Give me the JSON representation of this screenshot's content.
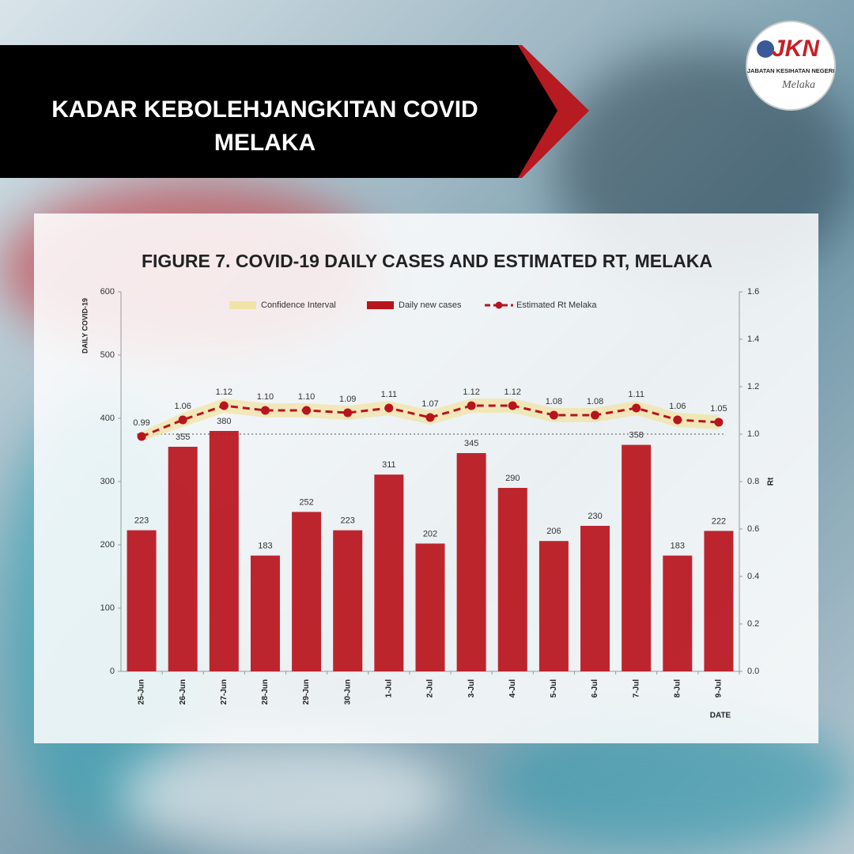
{
  "banner": {
    "title": "KADAR KEBOLEHJANGKITAN COVID MELAKA"
  },
  "logo": {
    "mark": "JKN",
    "org": "JABATAN KESIHATAN NEGERI",
    "state": "Melaka"
  },
  "chart_data": {
    "type": "bar",
    "title": "FIGURE 7. COVID-19 DAILY CASES AND ESTIMATED RT, MELAKA",
    "y_label": "DAILY COVID-19",
    "y2_label": "Rt",
    "x_label": "DATE",
    "categories": [
      "25-Jun",
      "26-Jun",
      "27-Jun",
      "28-Jun",
      "29-Jun",
      "30-Jun",
      "1-Jul",
      "2-Jul",
      "3-Jul",
      "4-Jul",
      "5-Jul",
      "6-Jul",
      "7-Jul",
      "8-Jul",
      "9-Jul"
    ],
    "series": [
      {
        "name": "Confidence Interval",
        "type": "band",
        "axis": "y2",
        "color": "#f1e3a6",
        "lower": [
          0.97,
          1.03,
          1.09,
          1.07,
          1.07,
          1.06,
          1.08,
          1.04,
          1.09,
          1.09,
          1.05,
          1.05,
          1.08,
          1.03,
          1.02
        ],
        "upper": [
          1.01,
          1.09,
          1.15,
          1.13,
          1.13,
          1.12,
          1.14,
          1.1,
          1.15,
          1.15,
          1.11,
          1.11,
          1.14,
          1.09,
          1.08
        ]
      },
      {
        "name": "Daily new cases",
        "type": "bar",
        "axis": "y",
        "color": "#b8141c",
        "values": [
          223,
          355,
          380,
          183,
          252,
          223,
          311,
          202,
          345,
          290,
          206,
          230,
          358,
          183,
          222
        ]
      },
      {
        "name": "Estimated Rt Melaka",
        "type": "line",
        "axis": "y2",
        "color": "#b8141c",
        "values": [
          0.99,
          1.06,
          1.12,
          1.1,
          1.1,
          1.09,
          1.11,
          1.07,
          1.12,
          1.12,
          1.08,
          1.08,
          1.11,
          1.06,
          1.05
        ],
        "value_labels": [
          "0.99",
          "1.06",
          "1.12",
          "1.10",
          "1.10",
          "1.09",
          "1.11",
          "1.07",
          "1.12",
          "1.12",
          "1.08",
          "1.08",
          "1.11",
          "1.06",
          "1.05"
        ]
      }
    ],
    "ylim": [
      0,
      600
    ],
    "yticks": [
      0,
      100,
      200,
      300,
      400,
      500,
      600
    ],
    "y2lim": [
      0,
      1.6
    ],
    "y2ticks": [
      {
        "value": 0,
        "label": "0.0"
      },
      0.2,
      0.4,
      0.6,
      0.8,
      {
        "value": 1,
        "label": "1.0"
      },
      1.2,
      1.4,
      1.6
    ],
    "y2_reference": 1
  }
}
